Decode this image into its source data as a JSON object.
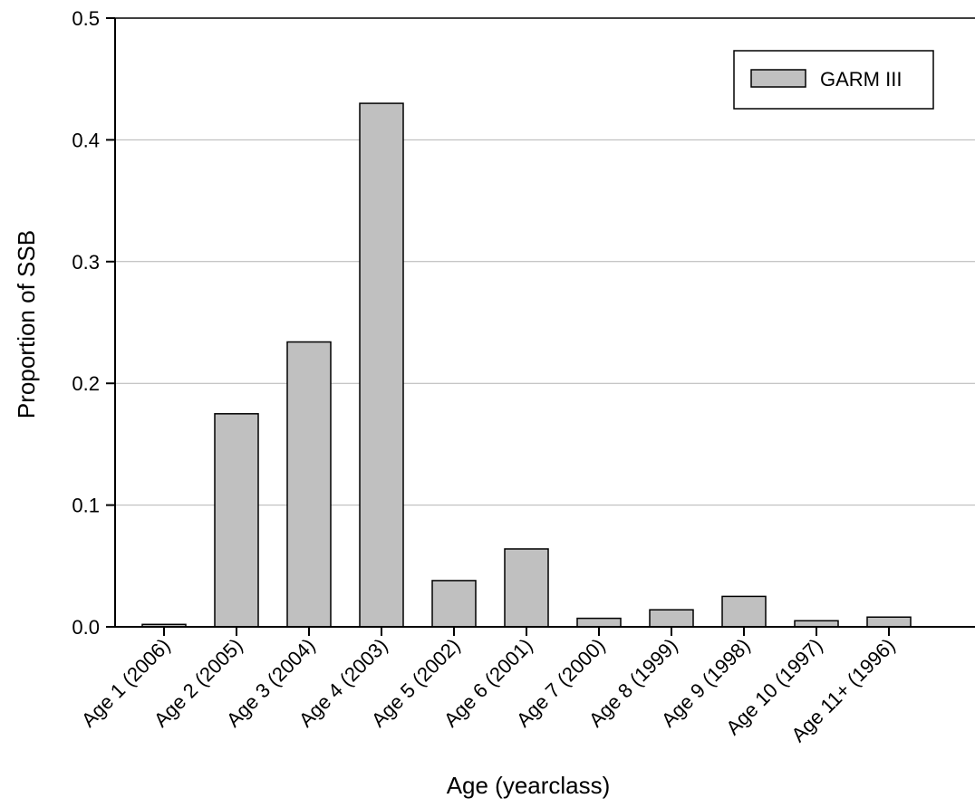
{
  "chart_data": {
    "type": "bar",
    "categories": [
      "Age 1 (2006)",
      "Age 2 (2005)",
      "Age 3 (2004)",
      "Age 4 (2003)",
      "Age 5 (2002)",
      "Age 6 (2001)",
      "Age 7 (2000)",
      "Age 8 (1999)",
      "Age 9 (1998)",
      "Age 10 (1997)",
      "Age 11+ (1996)"
    ],
    "series": [
      {
        "name": "GARM III",
        "values": [
          0.002,
          0.175,
          0.234,
          0.43,
          0.038,
          0.064,
          0.007,
          0.014,
          0.025,
          0.005,
          0.008
        ],
        "color": "#c0c0c0"
      }
    ],
    "xlabel": "Age (yearclass)",
    "ylabel": "Proportion of SSB",
    "ylim": [
      0,
      0.5
    ],
    "yticks": [
      "0.0",
      "0.1",
      "0.2",
      "0.3",
      "0.4",
      "0.5"
    ],
    "grid": true,
    "legend_position": "top-right"
  }
}
